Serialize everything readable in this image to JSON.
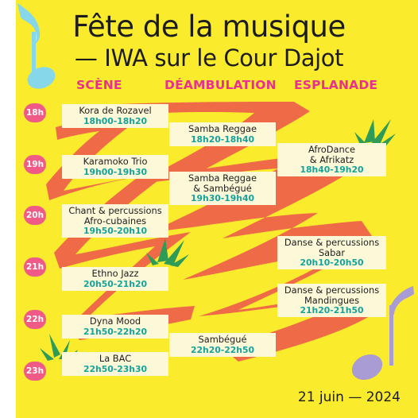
{
  "header": {
    "title_line1": "Fête de la musique",
    "title_line2": "— IWA sur le Cour Dajot"
  },
  "columns": [
    "SCÈNE",
    "DÉAMBULATION",
    "ESPLANADE"
  ],
  "hours": [
    "18h",
    "19h",
    "20h",
    "21h",
    "22h",
    "23h"
  ],
  "scene": [
    {
      "name": "Kora de Rozavel",
      "time": "18h00-18h20"
    },
    {
      "name": "Karamoko Trio",
      "time": "19h00-19h30"
    },
    {
      "name": "Chant & percussions\nAfro-cubaines",
      "time": "19h50-20h10"
    },
    {
      "name": "Ethno Jazz",
      "time": "20h50-21h20"
    },
    {
      "name": "Dyna Mood",
      "time": "21h50-22h20"
    },
    {
      "name": "La BAC",
      "time": "22h50-23h30"
    }
  ],
  "deambulation": [
    {
      "name": "Samba Reggae",
      "time": "18h20-18h40"
    },
    {
      "name": "Samba Reggae\n& Sambégué",
      "time": "19h30-19h40"
    },
    {
      "name": "Sambégué",
      "time": "22h20-22h50"
    }
  ],
  "esplanade": [
    {
      "name": "AfroDance\n& Afrikatz",
      "time": "18h40-19h20"
    },
    {
      "name": "Danse & percussions\nSabar",
      "time": "20h10-20h50"
    },
    {
      "name": "Danse & percussions\nMandingues",
      "time": "21h20-21h50"
    }
  ],
  "footer": {
    "date": "21 juin — 2024"
  },
  "colors": {
    "background": "#fbeb2d",
    "accent_pink": "#e8318e",
    "time_teal": "#14a39a",
    "squiggle": "#ef6b47",
    "note_blue": "#86d7e9",
    "note_purple": "#a99bd3",
    "grass_green": "#2e9c57"
  },
  "icons": [
    "music-note-icon",
    "music-note-icon",
    "grass-tuft-icon"
  ]
}
